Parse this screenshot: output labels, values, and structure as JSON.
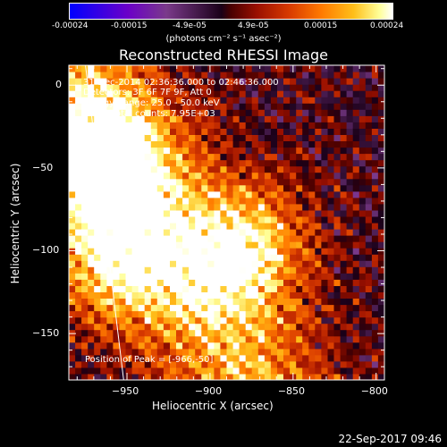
{
  "chart_data": {
    "type": "heatmap",
    "title": "Reconstructed RHESSI Image",
    "xlabel": "Heliocentric X (arcsec)",
    "ylabel": "Heliocentric Y (arcsec)",
    "xlim": [
      -985,
      -795
    ],
    "ylim": [
      -178,
      12
    ],
    "x_ticks": [
      -950,
      -900,
      -850,
      -800
    ],
    "y_ticks": [
      0,
      -50,
      -100,
      -150
    ],
    "colorbar": {
      "ticks": [
        "-0.00024",
        "-0.00015",
        "-4.9e-05",
        "4.9e-05",
        "0.00015",
        "0.00024"
      ],
      "unit": "(photons cm⁻² s⁻¹ asec⁻²)",
      "range": [
        -0.00024,
        0.00024
      ]
    },
    "annotations": [
      "31-Dec-2014 02:36:36.000 to 02:46:36.000",
      "Detectors: 3F 6F 7F 9F, Att 0",
      "Energy Range: 25.0 - 50.0 keV",
      "Clean    Total counts: 7.95E+03"
    ],
    "peak_label": "Position of Peak = [-966,-50]",
    "sources": [
      {
        "x": -970,
        "y": -50,
        "value": 0.00024
      },
      {
        "x": -880,
        "y": -100,
        "value": 0.0002
      },
      {
        "x": -960,
        "y": -110,
        "value": 0.00018
      }
    ],
    "limb_line": [
      [
        -975,
        12
      ],
      [
        -952,
        -178
      ]
    ]
  },
  "timestamp": "22-Sep-2017 09:46"
}
